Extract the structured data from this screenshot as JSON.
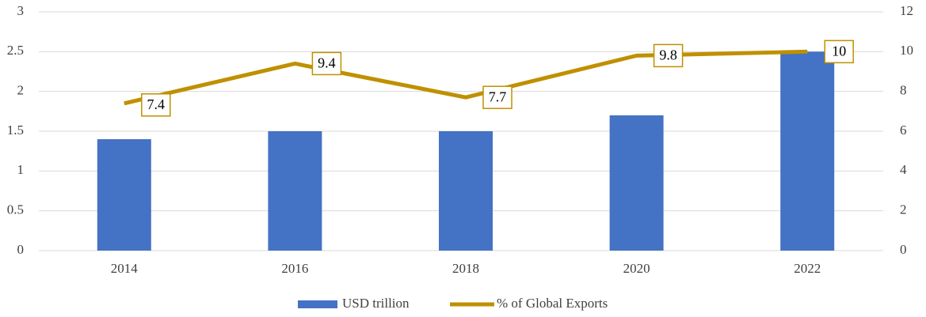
{
  "chart_data": {
    "type": "bar",
    "categories": [
      "2014",
      "2016",
      "2018",
      "2020",
      "2022"
    ],
    "series": [
      {
        "name": "USD trillion",
        "type": "bar",
        "color": "#4472c4",
        "values": [
          1.4,
          1.5,
          1.5,
          1.7,
          2.5
        ]
      },
      {
        "name": "% of Global Exports",
        "type": "line",
        "axis": "y2",
        "color": "#bf9000",
        "values": [
          7.4,
          9.4,
          7.7,
          9.8,
          10
        ]
      }
    ],
    "ylim": [
      0,
      3
    ],
    "yticks": [
      0,
      0.5,
      1,
      1.5,
      2,
      2.5,
      3
    ],
    "y2lim": [
      0,
      12
    ],
    "y2ticks": [
      0,
      2,
      4,
      6,
      8,
      10,
      12
    ],
    "grid": true,
    "legend": "bottom"
  }
}
